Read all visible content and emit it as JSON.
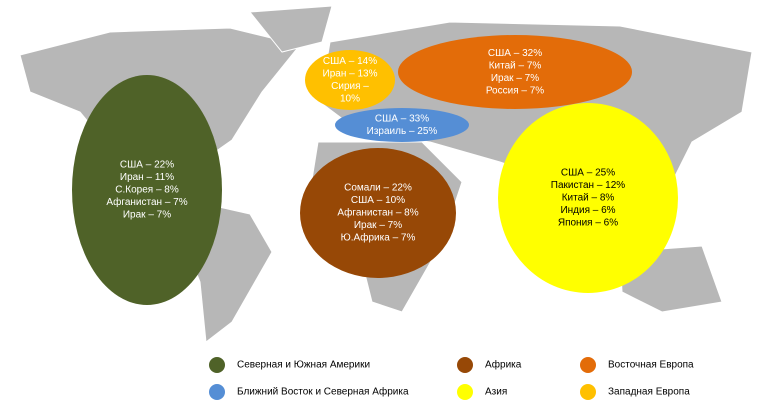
{
  "regions": [
    {
      "color": "#4f6228",
      "text_color": "#ffffff",
      "lines": [
        "США – 22%",
        "Иран – 11%",
        "С.Корея – 8%",
        "Афганистан – 7%",
        "Ирак – 7%"
      ]
    },
    {
      "color": "#974806",
      "text_color": "#ffffff",
      "lines": [
        "Сомали – 22%",
        "США – 10%",
        "Афганистан – 8%",
        "Ирак – 7%",
        "Ю.Африка – 7%"
      ]
    },
    {
      "color": "#e36c09",
      "text_color": "#ffffff",
      "lines": [
        "США – 32%",
        "Китай – 7%",
        "Ирак – 7%",
        "Россия – 7%"
      ]
    },
    {
      "color": "#ffc000",
      "text_color": "#ffffff",
      "lines": [
        "США – 14%",
        "Иран – 13%",
        "Сирия –",
        "10%"
      ]
    },
    {
      "color": "#558ed5",
      "text_color": "#ffffff",
      "lines": [
        "США – 33%",
        "Израиль – 25%"
      ]
    },
    {
      "color": "#ffff00",
      "text_color": "#000000",
      "lines": [
        "США – 25%",
        "Пакистан – 12%",
        "Китай – 8%",
        "Индия – 6%",
        "Япония – 6%"
      ]
    }
  ],
  "legend": [
    {
      "label": "Северная и Южная Америки",
      "color": "#4f6228"
    },
    {
      "label": "Африка",
      "color": "#974806"
    },
    {
      "label": "Восточная Европа",
      "color": "#e36c09"
    },
    {
      "label": "Ближний Восток и Северная Африка",
      "color": "#558ed5"
    },
    {
      "label": "Азия",
      "color": "#ffff00"
    },
    {
      "label": "Западная Европа",
      "color": "#ffc000"
    }
  ]
}
